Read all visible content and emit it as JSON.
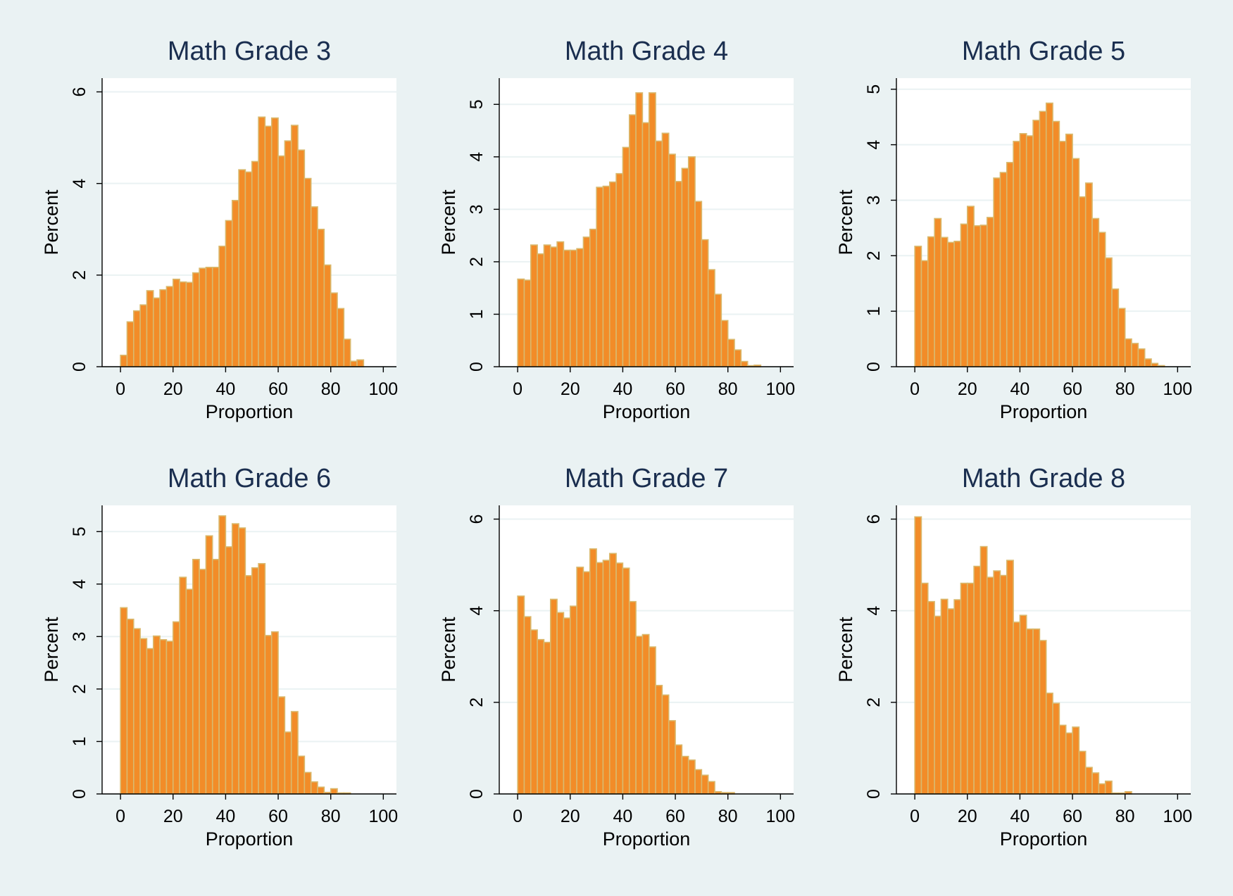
{
  "colors": {
    "background": "#eaf2f3",
    "plot_area": "#ffffff",
    "bar_fill": "#f28c28",
    "bar_edge": "#d9b96e",
    "gridline": "#eaf2f3",
    "title": "#1a2e4f"
  },
  "chart_data": [
    {
      "type": "bar",
      "title": "Math Grade 3",
      "xlabel": "Proportion",
      "ylabel": "Percent",
      "xlim": [
        -7,
        105
      ],
      "ylim": [
        0,
        6.3
      ],
      "xticks": [
        0,
        20,
        40,
        60,
        80,
        100
      ],
      "yticks": [
        0,
        2,
        4,
        6
      ],
      "bin_start": 0,
      "bin_width": 2.5,
      "values": [
        0.25,
        0.98,
        1.22,
        1.35,
        1.66,
        1.5,
        1.68,
        1.75,
        1.91,
        1.85,
        1.84,
        2.05,
        2.15,
        2.17,
        2.17,
        2.63,
        3.19,
        3.63,
        4.3,
        4.25,
        4.48,
        5.45,
        5.25,
        5.43,
        4.6,
        4.93,
        5.27,
        4.73,
        4.11,
        3.49,
        3.0,
        2.22,
        1.61,
        1.27,
        0.6,
        0.12,
        0.15
      ]
    },
    {
      "type": "bar",
      "title": "Math Grade 4",
      "xlabel": "Proportion",
      "ylabel": "Percent",
      "xlim": [
        -7,
        105
      ],
      "ylim": [
        0,
        5.5
      ],
      "xticks": [
        0,
        20,
        40,
        60,
        80,
        100
      ],
      "yticks": [
        0,
        1,
        2,
        3,
        4,
        5
      ],
      "bin_start": 0,
      "bin_width": 2.5,
      "values": [
        1.67,
        1.65,
        2.32,
        2.15,
        2.32,
        2.28,
        2.38,
        2.22,
        2.22,
        2.25,
        2.47,
        2.62,
        3.42,
        3.44,
        3.52,
        3.68,
        4.18,
        4.8,
        5.22,
        4.65,
        5.22,
        4.3,
        4.45,
        4.05,
        3.53,
        3.78,
        4.0,
        3.15,
        2.42,
        1.85,
        1.38,
        0.88,
        0.52,
        0.32,
        0.1,
        0.02,
        0.03
      ]
    },
    {
      "type": "bar",
      "title": "Math Grade 5",
      "xlabel": "Proportion",
      "ylabel": "Percent",
      "xlim": [
        -7,
        105
      ],
      "ylim": [
        0,
        5.2
      ],
      "xticks": [
        0,
        20,
        40,
        60,
        80,
        100
      ],
      "yticks": [
        0,
        1,
        2,
        3,
        4,
        5
      ],
      "bin_start": 0,
      "bin_width": 2.5,
      "values": [
        2.17,
        1.91,
        2.34,
        2.67,
        2.33,
        2.24,
        2.26,
        2.57,
        2.89,
        2.54,
        2.55,
        2.69,
        3.4,
        3.5,
        3.68,
        4.06,
        4.2,
        4.16,
        4.44,
        4.6,
        4.75,
        4.42,
        4.06,
        4.19,
        3.75,
        3.06,
        3.31,
        2.67,
        2.42,
        1.96,
        1.4,
        1.05,
        0.5,
        0.42,
        0.32,
        0.14,
        0.06,
        0.02
      ]
    },
    {
      "type": "bar",
      "title": "Math Grade 6",
      "xlabel": "Proportion",
      "ylabel": "Percent",
      "xlim": [
        -7,
        105
      ],
      "ylim": [
        0,
        5.5
      ],
      "xticks": [
        0,
        20,
        40,
        60,
        80,
        100
      ],
      "yticks": [
        0,
        1,
        2,
        3,
        4,
        5
      ],
      "bin_start": 0,
      "bin_width": 2.5,
      "values": [
        3.55,
        3.33,
        3.15,
        2.96,
        2.77,
        3.01,
        2.94,
        2.91,
        3.28,
        4.13,
        3.9,
        4.47,
        4.28,
        4.92,
        4.47,
        5.3,
        4.71,
        5.15,
        5.07,
        4.16,
        4.31,
        4.39,
        3.02,
        3.09,
        1.85,
        1.18,
        1.57,
        0.72,
        0.41,
        0.23,
        0.13,
        0.03,
        0.1,
        0.02,
        0.02
      ]
    },
    {
      "type": "bar",
      "title": "Math Grade 7",
      "xlabel": "Proportion",
      "ylabel": "Percent",
      "xlim": [
        -7,
        105
      ],
      "ylim": [
        0,
        6.3
      ],
      "xticks": [
        0,
        20,
        40,
        60,
        80,
        100
      ],
      "yticks": [
        0,
        2,
        4,
        6
      ],
      "bin_start": 0,
      "bin_width": 2.5,
      "values": [
        4.32,
        3.87,
        3.58,
        3.37,
        3.31,
        4.25,
        3.96,
        3.84,
        4.1,
        4.95,
        4.85,
        5.35,
        5.05,
        5.1,
        5.25,
        5.04,
        4.93,
        4.2,
        3.44,
        3.48,
        3.21,
        2.37,
        2.16,
        1.6,
        1.07,
        0.82,
        0.74,
        0.53,
        0.41,
        0.27,
        0.05,
        0.03,
        0.03
      ]
    },
    {
      "type": "bar",
      "title": "Math Grade 8",
      "xlabel": "Proportion",
      "ylabel": "Percent",
      "xlim": [
        -7,
        105
      ],
      "ylim": [
        0,
        6.3
      ],
      "xticks": [
        0,
        20,
        40,
        60,
        80,
        100
      ],
      "yticks": [
        0,
        2,
        4,
        6
      ],
      "bin_start": 0,
      "bin_width": 2.5,
      "values": [
        6.05,
        4.6,
        4.2,
        3.88,
        4.25,
        4.04,
        4.24,
        4.6,
        4.6,
        4.97,
        5.4,
        4.73,
        4.87,
        4.77,
        5.1,
        3.75,
        3.9,
        3.6,
        3.6,
        3.35,
        2.2,
        1.98,
        1.5,
        1.33,
        1.46,
        0.93,
        0.58,
        0.46,
        0.22,
        0.28,
        0.02,
        0.02,
        0.05
      ]
    }
  ]
}
